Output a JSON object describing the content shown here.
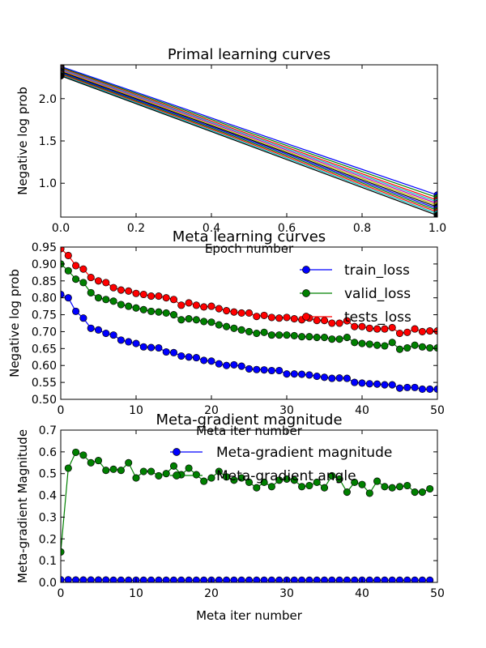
{
  "chart_data": [
    {
      "type": "line",
      "title": "Primal learning curves",
      "xlabel": "Epoch number",
      "ylabel": "Negative log prob",
      "xlim": [
        0,
        1
      ],
      "ylim": [
        0.6,
        2.4
      ],
      "xticks": [
        "0.0",
        "0.2",
        "0.4",
        "0.6",
        "0.8",
        "1.0"
      ],
      "yticks": [
        "1.0",
        "1.5",
        "2.0"
      ],
      "grid": false,
      "legend": "none",
      "series": [
        {
          "x": [
            0,
            1
          ],
          "y": [
            2.38,
            0.86
          ],
          "color": "#0000ff"
        },
        {
          "x": [
            0,
            1
          ],
          "y": [
            2.37,
            0.83
          ],
          "color": "#008000"
        },
        {
          "x": [
            0,
            1
          ],
          "y": [
            2.36,
            0.8
          ],
          "color": "#ff0000"
        },
        {
          "x": [
            0,
            1
          ],
          "y": [
            2.35,
            0.78
          ],
          "color": "#00bfbf"
        },
        {
          "x": [
            0,
            1
          ],
          "y": [
            2.34,
            0.76
          ],
          "color": "#bf00bf"
        },
        {
          "x": [
            0,
            1
          ],
          "y": [
            2.33,
            0.74
          ],
          "color": "#bfbf00"
        },
        {
          "x": [
            0,
            1
          ],
          "y": [
            2.32,
            0.72
          ],
          "color": "#000000"
        },
        {
          "x": [
            0,
            1
          ],
          "y": [
            2.31,
            0.7
          ],
          "color": "#0000ff"
        },
        {
          "x": [
            0,
            1
          ],
          "y": [
            2.3,
            0.68
          ],
          "color": "#008000"
        },
        {
          "x": [
            0,
            1
          ],
          "y": [
            2.29,
            0.66
          ],
          "color": "#ff0000"
        },
        {
          "x": [
            0,
            1
          ],
          "y": [
            2.28,
            0.64
          ],
          "color": "#00bfbf"
        },
        {
          "x": [
            0,
            1
          ],
          "y": [
            2.27,
            0.62
          ],
          "color": "#000000"
        }
      ]
    },
    {
      "type": "line",
      "title": "Meta learning curves",
      "xlabel": "Meta iter number",
      "ylabel": "Negative log prob",
      "xlim": [
        0,
        50
      ],
      "ylim": [
        0.5,
        0.95
      ],
      "xticks": [
        "0",
        "10",
        "20",
        "30",
        "40",
        "50"
      ],
      "yticks": [
        "0.50",
        "0.55",
        "0.60",
        "0.65",
        "0.70",
        "0.75",
        "0.80",
        "0.85",
        "0.90",
        "0.95"
      ],
      "grid": false,
      "legend": "top-right",
      "x": [
        0,
        1,
        2,
        3,
        4,
        5,
        6,
        7,
        8,
        9,
        10,
        11,
        12,
        13,
        14,
        15,
        16,
        17,
        18,
        19,
        20,
        21,
        22,
        23,
        24,
        25,
        26,
        27,
        28,
        29,
        30,
        31,
        32,
        33,
        34,
        35,
        36,
        37,
        38,
        39,
        40,
        41,
        42,
        43,
        44,
        45,
        46,
        47,
        48,
        49,
        50
      ],
      "series": [
        {
          "name": "train_loss",
          "color": "#0000ff",
          "values": [
            0.81,
            0.8,
            0.76,
            0.74,
            0.71,
            0.705,
            0.695,
            0.69,
            0.675,
            0.67,
            0.665,
            0.655,
            0.653,
            0.652,
            0.64,
            0.638,
            0.628,
            0.625,
            0.623,
            0.615,
            0.613,
            0.605,
            0.6,
            0.602,
            0.598,
            0.59,
            0.588,
            0.587,
            0.585,
            0.585,
            0.575,
            0.575,
            0.574,
            0.572,
            0.568,
            0.565,
            0.562,
            0.563,
            0.562,
            0.55,
            0.548,
            0.546,
            0.545,
            0.543,
            0.543,
            0.533,
            0.535,
            0.535,
            0.53,
            0.53,
            0.53
          ]
        },
        {
          "name": "valid_loss",
          "color": "#008000",
          "values": [
            0.9,
            0.88,
            0.855,
            0.845,
            0.815,
            0.8,
            0.795,
            0.79,
            0.78,
            0.775,
            0.77,
            0.765,
            0.76,
            0.758,
            0.755,
            0.75,
            0.735,
            0.738,
            0.735,
            0.73,
            0.728,
            0.72,
            0.715,
            0.71,
            0.705,
            0.7,
            0.695,
            0.698,
            0.69,
            0.69,
            0.69,
            0.688,
            0.685,
            0.685,
            0.683,
            0.683,
            0.678,
            0.678,
            0.683,
            0.668,
            0.665,
            0.663,
            0.66,
            0.658,
            0.668,
            0.648,
            0.652,
            0.66,
            0.655,
            0.652,
            0.652
          ]
        },
        {
          "name": "tests_loss",
          "color": "#ff0000",
          "values": [
            0.945,
            0.925,
            0.895,
            0.885,
            0.86,
            0.85,
            0.845,
            0.83,
            0.823,
            0.82,
            0.813,
            0.81,
            0.805,
            0.805,
            0.8,
            0.795,
            0.778,
            0.785,
            0.778,
            0.773,
            0.775,
            0.768,
            0.762,
            0.758,
            0.755,
            0.755,
            0.745,
            0.748,
            0.742,
            0.74,
            0.742,
            0.738,
            0.735,
            0.74,
            0.733,
            0.733,
            0.725,
            0.725,
            0.732,
            0.715,
            0.715,
            0.71,
            0.708,
            0.708,
            0.712,
            0.695,
            0.698,
            0.708,
            0.7,
            0.702,
            0.702
          ]
        }
      ]
    },
    {
      "type": "line",
      "title": "Meta-gradient magnitude",
      "xlabel": "Meta iter number",
      "ylabel": "Meta-gradient Magnitude",
      "xlim": [
        0,
        50
      ],
      "ylim": [
        0.0,
        0.7
      ],
      "xticks": [
        "0",
        "10",
        "20",
        "30",
        "40",
        "50"
      ],
      "yticks": [
        "0.0",
        "0.1",
        "0.2",
        "0.3",
        "0.4",
        "0.5",
        "0.6",
        "0.7"
      ],
      "grid": false,
      "legend": "top-right",
      "x": [
        0,
        1,
        2,
        3,
        4,
        5,
        6,
        7,
        8,
        9,
        10,
        11,
        12,
        13,
        14,
        15,
        16,
        17,
        18,
        19,
        20,
        21,
        22,
        23,
        24,
        25,
        26,
        27,
        28,
        29,
        30,
        31,
        32,
        33,
        34,
        35,
        36,
        37,
        38,
        39,
        40,
        41,
        42,
        43,
        44,
        45,
        46,
        47,
        48,
        49
      ],
      "series": [
        {
          "name": "Meta-gradient magnitude",
          "color": "#0000ff",
          "values": [
            0.012,
            0.012,
            0.011,
            0.011,
            0.011,
            0.011,
            0.011,
            0.01,
            0.01,
            0.01,
            0.01,
            0.01,
            0.01,
            0.01,
            0.01,
            0.01,
            0.01,
            0.01,
            0.01,
            0.01,
            0.01,
            0.01,
            0.01,
            0.01,
            0.01,
            0.01,
            0.01,
            0.01,
            0.01,
            0.01,
            0.01,
            0.01,
            0.01,
            0.01,
            0.01,
            0.01,
            0.01,
            0.01,
            0.01,
            0.01,
            0.01,
            0.01,
            0.01,
            0.01,
            0.01,
            0.01,
            0.01,
            0.01,
            0.01,
            0.01
          ]
        },
        {
          "name": "Meta-gradient angle",
          "color": "#008000",
          "values": [
            0.14,
            0.525,
            0.598,
            0.585,
            0.55,
            0.56,
            0.515,
            0.52,
            0.515,
            0.55,
            0.48,
            0.51,
            0.51,
            0.49,
            0.5,
            0.535,
            0.495,
            0.525,
            0.495,
            0.465,
            0.48,
            0.51,
            0.485,
            0.47,
            0.48,
            0.46,
            0.435,
            0.46,
            0.44,
            0.47,
            0.475,
            0.47,
            0.44,
            0.445,
            0.46,
            0.435,
            0.49,
            0.475,
            0.415,
            0.46,
            0.45,
            0.41,
            0.465,
            0.44,
            0.435,
            0.44,
            0.445,
            0.415,
            0.415,
            0.43
          ]
        }
      ]
    }
  ]
}
